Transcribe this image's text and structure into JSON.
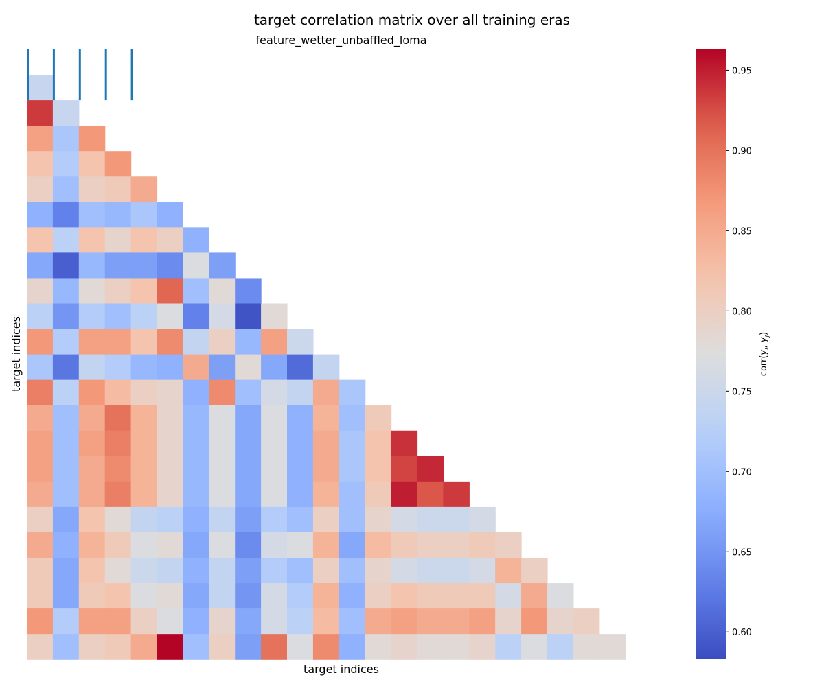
{
  "chart_data": {
    "type": "heatmap",
    "title": "target correlation matrix over all training eras",
    "subtitle": "feature_wetter_unbaffled_loma",
    "xlabel": "target indices",
    "ylabel": "target indices",
    "colorbar_label": "corr(y_i, y_j)",
    "colormap": "coolwarm",
    "vmin": 0.583,
    "vmax": 0.963,
    "colorbar_ticks": [
      "0.60",
      "0.65",
      "0.70",
      "0.75",
      "0.80",
      "0.85",
      "0.90",
      "0.95"
    ],
    "mask": "upper-triangle (lower triangle shown)",
    "tick_labels_visible": false,
    "marker_color": "#1f77b4",
    "marker_columns": [
      0,
      1,
      2,
      3,
      4
    ],
    "rows": [
      [],
      [
        0.745
      ],
      [
        0.935,
        0.745
      ],
      [
        0.86,
        0.71,
        0.87
      ],
      [
        0.82,
        0.72,
        0.82,
        0.87
      ],
      [
        0.8,
        0.7,
        0.8,
        0.81,
        0.85
      ],
      [
        0.68,
        0.63,
        0.7,
        0.69,
        0.71,
        0.68
      ],
      [
        0.82,
        0.73,
        0.82,
        0.79,
        0.82,
        0.8,
        0.68
      ],
      [
        0.67,
        0.6,
        0.69,
        0.66,
        0.66,
        0.64,
        0.77,
        0.66
      ],
      [
        0.79,
        0.69,
        0.78,
        0.8,
        0.82,
        0.91,
        0.7,
        0.78,
        0.64
      ],
      [
        0.73,
        0.65,
        0.72,
        0.7,
        0.73,
        0.77,
        0.63,
        0.76,
        0.59,
        0.78
      ],
      [
        0.87,
        0.72,
        0.86,
        0.86,
        0.82,
        0.88,
        0.74,
        0.8,
        0.69,
        0.86,
        0.75
      ],
      [
        0.71,
        0.62,
        0.74,
        0.72,
        0.69,
        0.68,
        0.85,
        0.66,
        0.78,
        0.67,
        0.61,
        0.74
      ],
      [
        0.89,
        0.73,
        0.87,
        0.83,
        0.8,
        0.79,
        0.68,
        0.88,
        0.7,
        0.76,
        0.74,
        0.85,
        0.71
      ],
      [
        0.85,
        0.7,
        0.85,
        0.9,
        0.84,
        0.79,
        0.69,
        0.77,
        0.67,
        0.77,
        0.68,
        0.84,
        0.7,
        0.81
      ],
      [
        0.86,
        0.7,
        0.86,
        0.89,
        0.84,
        0.79,
        0.69,
        0.77,
        0.67,
        0.77,
        0.68,
        0.85,
        0.71,
        0.82,
        0.94
      ],
      [
        0.86,
        0.7,
        0.85,
        0.88,
        0.84,
        0.79,
        0.69,
        0.77,
        0.67,
        0.77,
        0.68,
        0.85,
        0.71,
        0.82,
        0.93,
        0.945
      ],
      [
        0.85,
        0.7,
        0.85,
        0.89,
        0.84,
        0.79,
        0.69,
        0.77,
        0.67,
        0.77,
        0.68,
        0.84,
        0.7,
        0.81,
        0.95,
        0.92,
        0.935
      ],
      [
        0.8,
        0.67,
        0.82,
        0.78,
        0.74,
        0.73,
        0.68,
        0.74,
        0.66,
        0.72,
        0.7,
        0.8,
        0.7,
        0.79,
        0.76,
        0.75,
        0.75,
        0.76
      ],
      [
        0.85,
        0.68,
        0.84,
        0.81,
        0.77,
        0.78,
        0.67,
        0.77,
        0.64,
        0.76,
        0.77,
        0.84,
        0.67,
        0.83,
        0.81,
        0.8,
        0.8,
        0.81,
        0.8
      ],
      [
        0.81,
        0.67,
        0.82,
        0.78,
        0.75,
        0.74,
        0.68,
        0.74,
        0.66,
        0.72,
        0.7,
        0.8,
        0.7,
        0.79,
        0.76,
        0.75,
        0.75,
        0.76,
        0.84,
        0.8
      ],
      [
        0.81,
        0.67,
        0.81,
        0.82,
        0.77,
        0.78,
        0.67,
        0.74,
        0.65,
        0.76,
        0.72,
        0.84,
        0.68,
        0.8,
        0.82,
        0.81,
        0.81,
        0.81,
        0.76,
        0.85,
        0.77
      ],
      [
        0.87,
        0.72,
        0.86,
        0.86,
        0.8,
        0.77,
        0.68,
        0.79,
        0.67,
        0.76,
        0.73,
        0.83,
        0.7,
        0.85,
        0.86,
        0.85,
        0.85,
        0.86,
        0.79,
        0.87,
        0.79,
        0.8
      ],
      [
        0.8,
        0.7,
        0.8,
        0.81,
        0.85,
        0.963,
        0.7,
        0.8,
        0.66,
        0.9,
        0.77,
        0.88,
        0.68,
        0.78,
        0.79,
        0.78,
        0.78,
        0.79,
        0.73,
        0.77,
        0.73,
        0.78,
        0.78
      ]
    ]
  }
}
